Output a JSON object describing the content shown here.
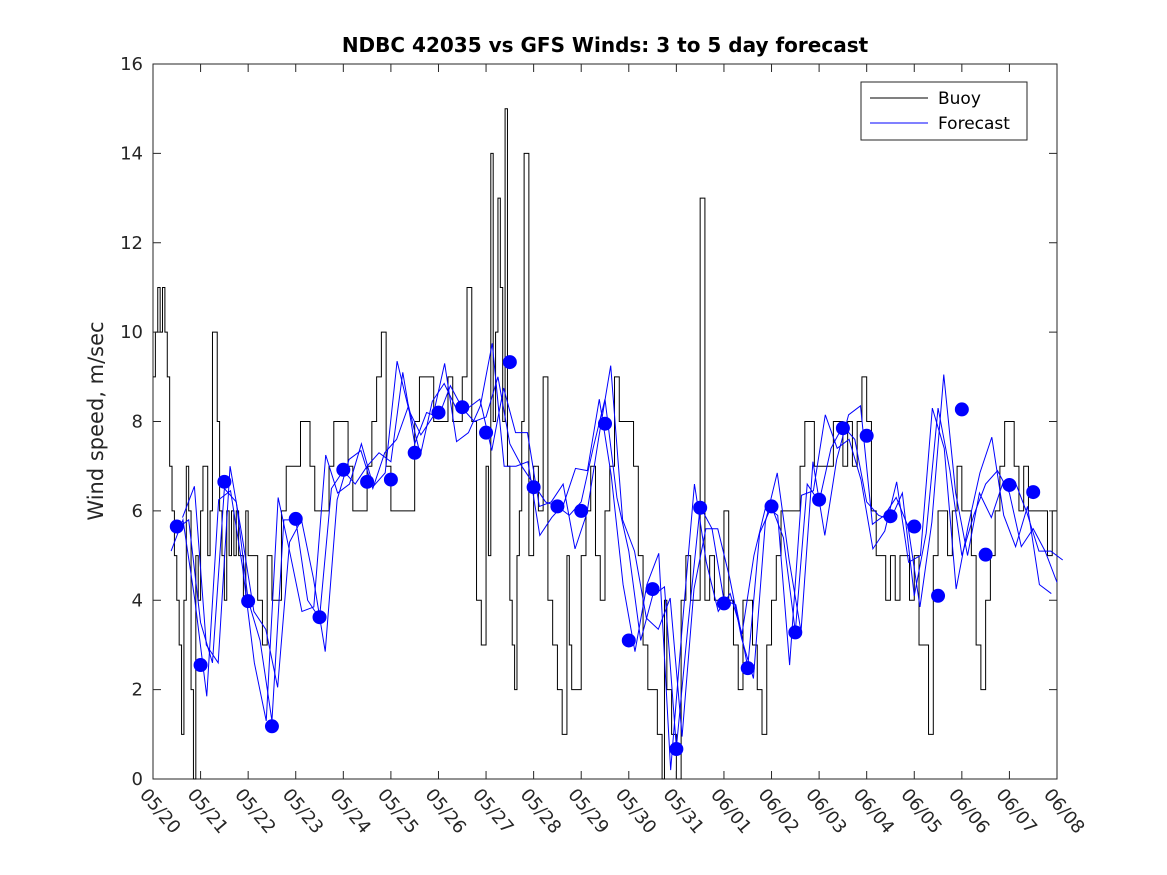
{
  "chart_data": {
    "type": "line",
    "title": "NDBC 42035 vs GFS Winds: 3 to 5 day forecast",
    "xlabel": "",
    "ylabel": "Wind speed, m/sec",
    "xlim": [
      0,
      19
    ],
    "ylim": [
      0,
      16
    ],
    "x_tick_labels": [
      "05/20",
      "05/21",
      "05/22",
      "05/23",
      "05/24",
      "05/25",
      "05/26",
      "05/27",
      "05/28",
      "05/29",
      "05/30",
      "05/31",
      "06/01",
      "06/02",
      "06/03",
      "06/04",
      "06/05",
      "06/06",
      "06/07",
      "06/08"
    ],
    "y_ticks": [
      0,
      2,
      4,
      6,
      8,
      10,
      12,
      14,
      16
    ],
    "legend": {
      "placement": "top-right",
      "entries": [
        "Buoy",
        "Forecast"
      ]
    },
    "colors": {
      "buoy": "#000000",
      "forecast": "#0000ff"
    },
    "series": [
      {
        "name": "Buoy",
        "x": [
          0,
          0.05,
          0.1,
          0.15,
          0.2,
          0.25,
          0.3,
          0.35,
          0.4,
          0.45,
          0.5,
          0.55,
          0.6,
          0.65,
          0.7,
          0.75,
          0.8,
          0.85,
          0.9,
          0.95,
          1.0,
          1.05,
          1.1,
          1.15,
          1.2,
          1.25,
          1.3,
          1.35,
          1.4,
          1.45,
          1.5,
          1.55,
          1.6,
          1.65,
          1.7,
          1.75,
          1.8,
          1.85,
          1.9,
          1.95,
          2.0,
          2.1,
          2.2,
          2.3,
          2.4,
          2.5,
          2.6,
          2.7,
          2.8,
          2.9,
          3.0,
          3.1,
          3.2,
          3.3,
          3.4,
          3.5,
          3.6,
          3.7,
          3.8,
          3.9,
          4.0,
          4.1,
          4.2,
          4.3,
          4.4,
          4.5,
          4.6,
          4.7,
          4.8,
          4.9,
          5.0,
          5.1,
          5.2,
          5.3,
          5.4,
          5.5,
          5.6,
          5.7,
          5.8,
          5.9,
          6.0,
          6.1,
          6.2,
          6.3,
          6.4,
          6.5,
          6.6,
          6.7,
          6.8,
          6.9,
          7.0,
          7.05,
          7.1,
          7.15,
          7.2,
          7.25,
          7.3,
          7.35,
          7.4,
          7.45,
          7.5,
          7.55,
          7.6,
          7.65,
          7.7,
          7.75,
          7.8,
          7.9,
          8.0,
          8.1,
          8.2,
          8.3,
          8.4,
          8.5,
          8.6,
          8.7,
          8.75,
          8.8,
          8.9,
          9.0,
          9.1,
          9.2,
          9.3,
          9.4,
          9.5,
          9.6,
          9.7,
          9.8,
          9.9,
          10.0,
          10.1,
          10.2,
          10.3,
          10.4,
          10.5,
          10.6,
          10.7,
          10.75,
          10.8,
          10.9,
          11.0,
          11.1,
          11.2,
          11.3,
          11.4,
          11.5,
          11.6,
          11.7,
          11.8,
          11.9,
          12.0,
          12.1,
          12.2,
          12.3,
          12.4,
          12.5,
          12.6,
          12.7,
          12.8,
          12.9,
          13.0,
          13.1,
          13.2,
          13.3,
          13.4,
          13.5,
          13.6,
          13.7,
          13.8,
          13.9,
          14.0,
          14.1,
          14.2,
          14.3,
          14.4,
          14.5,
          14.6,
          14.7,
          14.8,
          14.9,
          15.0,
          15.1,
          15.2,
          15.3,
          15.4,
          15.5,
          15.6,
          15.7,
          15.8,
          15.9,
          16.0,
          16.1,
          16.2,
          16.3,
          16.4,
          16.5,
          16.6,
          16.7,
          16.8,
          16.9,
          17.0,
          17.1,
          17.2,
          17.3,
          17.4,
          17.5,
          17.6,
          17.7,
          17.8,
          17.9,
          18.0,
          18.1,
          18.2,
          18.3,
          18.4,
          18.5,
          18.6,
          18.7,
          18.8,
          18.9,
          19.0
        ],
        "y": [
          9,
          10,
          11,
          10,
          11,
          10,
          9,
          7,
          6,
          5,
          4,
          3,
          1,
          4,
          7,
          6,
          2,
          0,
          5,
          4,
          6,
          7,
          7,
          5,
          6,
          10,
          10,
          8,
          6,
          5,
          4,
          6,
          5,
          6,
          5,
          6,
          5,
          5,
          4,
          6,
          5,
          5,
          4,
          3,
          5,
          4,
          4,
          6,
          7,
          7,
          7,
          8,
          8,
          7,
          6,
          6,
          6,
          7,
          8,
          8,
          8,
          7,
          6,
          6,
          6,
          7,
          8,
          9,
          10,
          7,
          6,
          6,
          6,
          6,
          6,
          8,
          9,
          9,
          9,
          8,
          8,
          8,
          9,
          8,
          8,
          9,
          11,
          8,
          4,
          3,
          7,
          5,
          14,
          8,
          10,
          13,
          11,
          8,
          15,
          7,
          4,
          3,
          2,
          5,
          6,
          8,
          14,
          5,
          7,
          6,
          9,
          4,
          3,
          2,
          1,
          5,
          3,
          2,
          2,
          5,
          6,
          7,
          5,
          4,
          6,
          7,
          9,
          8,
          8,
          8,
          7,
          5,
          3,
          2,
          2,
          1,
          0,
          4,
          2,
          1,
          0,
          4,
          5,
          4,
          4,
          13,
          4,
          5,
          4,
          4,
          6,
          4,
          3,
          2,
          4,
          4,
          3,
          2,
          1,
          3,
          4,
          5,
          6,
          6,
          6,
          6,
          7,
          8,
          8,
          7,
          7,
          7,
          7,
          8,
          8,
          7,
          8,
          7,
          8,
          9,
          8,
          6,
          5,
          5,
          4,
          5,
          4,
          5,
          5,
          4,
          5,
          3,
          3,
          1,
          5,
          6,
          6,
          5,
          6,
          7,
          6,
          6,
          5,
          3,
          2,
          4,
          5,
          6,
          7,
          8,
          8,
          7,
          6,
          7,
          6,
          6,
          6,
          6,
          5,
          6,
          6
        ],
        "color": "#000000"
      },
      {
        "name": "Forecast",
        "x": [
          0.5,
          0.75,
          1.0,
          1.25,
          1.5,
          1.75,
          2.0,
          2.25,
          2.5,
          2.75,
          3.0,
          3.25,
          3.5,
          3.75,
          4.0,
          4.25,
          4.5,
          4.75,
          5.0,
          5.25,
          5.5,
          5.75,
          6.0,
          6.25,
          6.5,
          6.75,
          7.0,
          7.25,
          7.5,
          7.75,
          8.0,
          8.25,
          8.5,
          8.75,
          9.0,
          9.25,
          9.5,
          9.75,
          10.0,
          10.25,
          10.5,
          10.75,
          11.0,
          11.25,
          11.5,
          11.75,
          12.0,
          12.25,
          12.5,
          12.75,
          13.0,
          13.25,
          13.5,
          13.75,
          14.0,
          14.25,
          14.5,
          14.75,
          15.0,
          15.25,
          15.5,
          15.75,
          16.0,
          16.25,
          16.5,
          16.75,
          17.0,
          17.25,
          17.5,
          17.75,
          18.0,
          18.25,
          18.5,
          18.75,
          19.0
        ],
        "y": [
          5.6,
          5.8,
          3.5,
          2.6,
          6.5,
          6.2,
          4.0,
          3.1,
          1.3,
          5.8,
          5.8,
          4.0,
          3.6,
          6.5,
          6.9,
          6.6,
          7.0,
          7.3,
          7.1,
          9.1,
          7.5,
          8.2,
          8.1,
          8.8,
          8.3,
          8.0,
          8.1,
          9.0,
          7.5,
          7.0,
          6.6,
          6.2,
          6.1,
          5.9,
          6.2,
          7.4,
          8.5,
          6.3,
          5.1,
          3.1,
          4.1,
          4.3,
          0.7,
          3.5,
          6.1,
          5.6,
          4.0,
          3.9,
          2.5,
          5.5,
          6.1,
          5.4,
          3.3,
          6.6,
          6.2,
          7.4,
          7.9,
          7.6,
          6.2,
          5.9,
          5.8,
          6.4,
          4.1,
          5.5,
          8.3,
          6.9,
          5.0,
          5.9,
          6.6,
          6.9,
          6.4,
          5.2,
          5.6,
          5.1,
          4.4
        ],
        "color": "#0000ff"
      },
      {
        "name": "",
        "x": [
          0.5,
          1.0,
          1.5,
          2.0,
          2.5,
          3.0,
          3.5,
          4.0,
          4.5,
          5.0,
          5.5,
          6.0,
          6.5,
          7.0,
          7.5,
          8.0,
          8.5,
          9.0,
          9.5,
          10.0,
          10.5,
          11.0,
          11.5,
          12.0,
          12.5,
          13.0,
          13.5,
          14.0,
          14.5,
          15.0,
          15.5,
          16.0,
          16.5,
          17.0,
          17.5,
          18.0,
          18.5
        ],
        "y": [
          5.65,
          2.55,
          6.65,
          3.98,
          1.18,
          5.82,
          3.62,
          6.92,
          6.65,
          6.7,
          7.3,
          8.2,
          8.32,
          7.75,
          9.33,
          6.53,
          6.1,
          6.0,
          7.95,
          3.1,
          4.25,
          0.67,
          6.07,
          3.93,
          2.48,
          6.1,
          3.28,
          6.25,
          7.85,
          7.68,
          5.88,
          5.65,
          4.1,
          8.27,
          5.02,
          6.58,
          6.42
        ],
        "marker": "circle",
        "color": "#0000ff"
      }
    ]
  }
}
